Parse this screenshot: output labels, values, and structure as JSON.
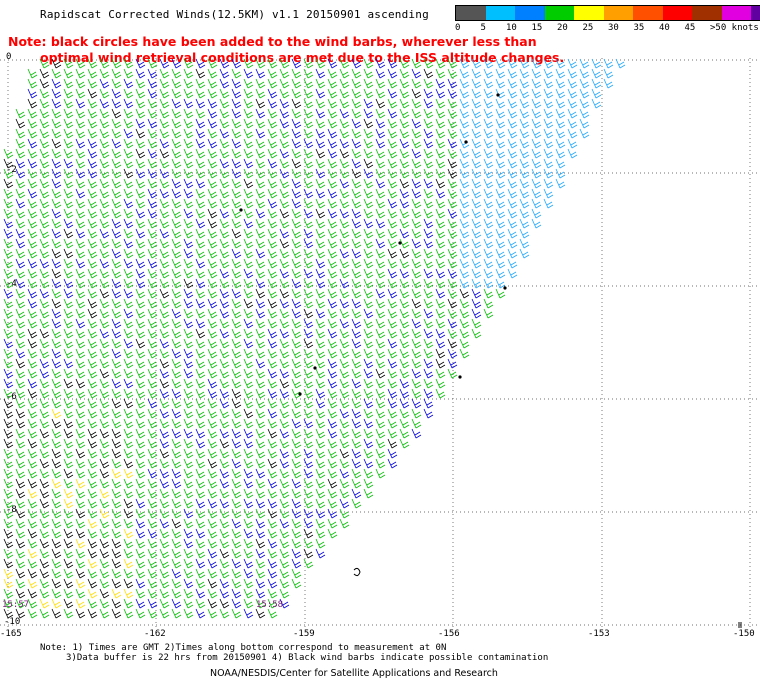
{
  "title": "Rapidscat Corrected Winds(12.5KM) v1.1 20150901 ascending",
  "note_line1": "Note: black circles have been added to the wind barbs, wherever less than",
  "note_line2": "optimal wind retrieval conditions are met due to the ISS altitude changes.",
  "legend": {
    "labels": [
      "0",
      "5",
      "10",
      "15",
      "20",
      "25",
      "30",
      "35",
      "40",
      "45",
      ">50 knots"
    ],
    "colors": [
      "#555555",
      "#00bfff",
      "#0080ff",
      "#00cc00",
      "#ffff00",
      "#ffa000",
      "#ff5000",
      "#ff0000",
      "#a03000",
      "#e000e0",
      "#6000a0"
    ]
  },
  "y_labels": [
    "0",
    "-2",
    "-4",
    "-6",
    "-8",
    "-10"
  ],
  "x_labels": [
    "-165",
    "-162",
    "-159",
    "-156",
    "-153",
    "-150"
  ],
  "times": {
    "left": "15:57",
    "mid": "15:58"
  },
  "footer": {
    "line1": "Note: 1) Times are GMT 2)Times along bottom correspond to measurement at 0N",
    "line2": "3)Data buffer is 22 hrs from 20150901 4) Black wind barbs indicate possible contamination",
    "line3": "NOAA/NESDIS/Center for Satellite Applications and Research"
  },
  "map_data": {
    "lon_range": [
      -165,
      -150
    ],
    "lat_range": [
      -10,
      0
    ],
    "grid": "dotted"
  }
}
